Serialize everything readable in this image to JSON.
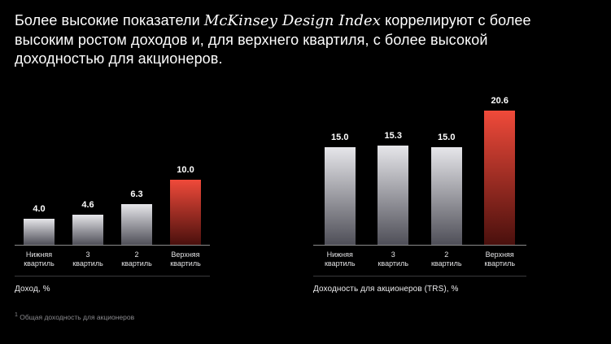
{
  "title": {
    "prefix": "Более высокие показатели ",
    "emphasis": "McKinsey Design Index",
    "suffix": " коррелируют с более высоким ростом доходов и, для верхнего квартиля, с более высокой доходностью для акционеров."
  },
  "footnote": {
    "marker": "1",
    "text": "Общая доходность для акционеров"
  },
  "colors": {
    "background": "#000000",
    "text": "#ffffff",
    "bar_top": "#e6e6ea",
    "bar_bottom": "#4f4f58",
    "highlight_top": "#f04a3a",
    "highlight_bottom": "#4a100d"
  },
  "chart_data": [
    {
      "type": "bar",
      "categories": [
        "Нижняя\nквартиль",
        "3\nквартиль",
        "2\nквартиль",
        "Верхняя\nквартиль"
      ],
      "values": [
        4.0,
        4.6,
        6.3,
        10.0
      ],
      "labels": [
        "4.0",
        "4.6",
        "6.3",
        "10.0"
      ],
      "highlight_index": 3,
      "xlabel": "Доход, %",
      "ylabel": "",
      "ylim": [
        0,
        21
      ],
      "grid": false,
      "legend": false
    },
    {
      "type": "bar",
      "categories": [
        "Нижняя\nквартиль",
        "3\nквартиль",
        "2\nквартиль",
        "Верхняя\nквартиль"
      ],
      "values": [
        15.0,
        15.3,
        15.0,
        20.6
      ],
      "labels": [
        "15.0",
        "15.3",
        "15.0",
        "20.6"
      ],
      "highlight_index": 3,
      "xlabel": "Доходность для акционеров (TRS), %",
      "ylabel": "",
      "ylim": [
        0,
        21
      ],
      "grid": false,
      "legend": false
    }
  ]
}
